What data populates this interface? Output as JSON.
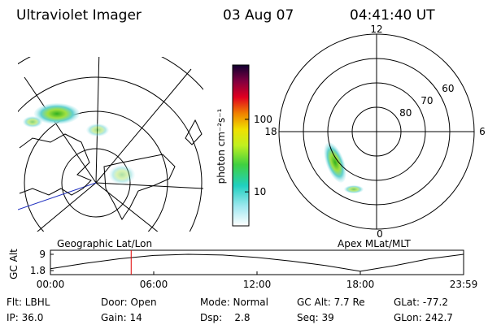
{
  "header": {
    "instrument": "Ultraviolet Imager",
    "date": "03 Aug 07",
    "time": "04:41:40 UT"
  },
  "colorbar": {
    "label": "photon cm⁻²s⁻¹",
    "lim": [
      3.4,
      560
    ],
    "ticks": [
      10,
      100
    ],
    "log": true
  },
  "polar": {
    "rlim": [
      90,
      50
    ],
    "rings": [
      80,
      70,
      60
    ],
    "hours": [
      {
        "value": 12,
        "label": "12"
      },
      {
        "value": 18,
        "label": "18"
      },
      {
        "value": 6,
        "label": "6"
      },
      {
        "value": 0,
        "label": "0"
      }
    ]
  },
  "left_caption": "Geographic Lat/Lon",
  "right_caption": "Apex MLat/MLT",
  "altitude": {
    "ylabel": "GC Alt",
    "x": [
      0,
      2,
      4,
      6,
      8,
      10,
      12,
      14,
      16,
      18,
      20,
      22,
      24
    ],
    "values": [
      2.6,
      5.0,
      7.0,
      8.5,
      9.0,
      8.7,
      7.6,
      6.0,
      4.0,
      1.5,
      4.0,
      7.0,
      9.0
    ],
    "xlim": [
      0,
      24
    ],
    "ylim": [
      0,
      10.8
    ],
    "yticks": [
      9.0,
      1.8
    ],
    "xticks": [
      {
        "value": 0,
        "label": "00:00"
      },
      {
        "value": 6,
        "label": "06:00"
      },
      {
        "value": 12,
        "label": "12:00"
      },
      {
        "value": 18,
        "label": "18:00"
      },
      {
        "value": 24,
        "label": "23:59"
      }
    ],
    "marker": 4.69
  },
  "info": [
    [
      "Flt: LBHL",
      "Door: Open",
      "Mode: Normal",
      "GC Alt: 7.7 Re",
      "GLat: -77.2"
    ],
    [
      "IP: 36.0",
      "Gain: 14",
      "Dsp:    2.8",
      "Seq: 39",
      "GLon: 242.7"
    ]
  ]
}
